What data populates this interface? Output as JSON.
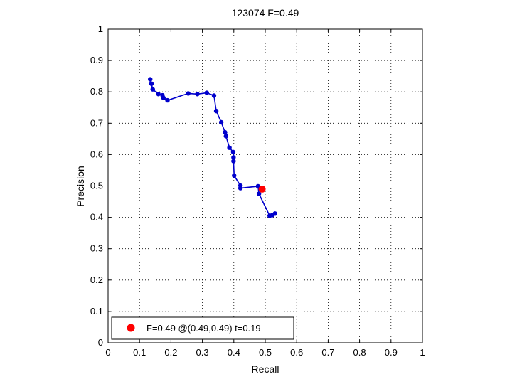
{
  "chart_data": {
    "type": "line",
    "title": "123074 F=0.49",
    "xlabel": "Recall",
    "ylabel": "Precision",
    "xlim": [
      0,
      1
    ],
    "ylim": [
      0,
      1
    ],
    "xticks": [
      "0",
      "0.1",
      "0.2",
      "0.3",
      "0.4",
      "0.5",
      "0.6",
      "0.7",
      "0.8",
      "0.9",
      "1"
    ],
    "yticks": [
      "0",
      "0.1",
      "0.2",
      "0.3",
      "0.4",
      "0.5",
      "0.6",
      "0.7",
      "0.8",
      "0.9",
      "1"
    ],
    "grid": true,
    "legend_position": "bottom-left",
    "series": [
      {
        "color": "#0000cc",
        "points": [
          [
            0.134,
            0.84
          ],
          [
            0.138,
            0.826
          ],
          [
            0.142,
            0.808
          ],
          [
            0.16,
            0.793
          ],
          [
            0.173,
            0.789
          ],
          [
            0.176,
            0.781
          ],
          [
            0.189,
            0.773
          ],
          [
            0.255,
            0.795
          ],
          [
            0.284,
            0.793
          ],
          [
            0.314,
            0.797
          ],
          [
            0.337,
            0.788
          ],
          [
            0.344,
            0.739
          ],
          [
            0.36,
            0.703
          ],
          [
            0.372,
            0.671
          ],
          [
            0.375,
            0.659
          ],
          [
            0.386,
            0.622
          ],
          [
            0.398,
            0.608
          ],
          [
            0.399,
            0.591
          ],
          [
            0.399,
            0.579
          ],
          [
            0.401,
            0.533
          ],
          [
            0.421,
            0.501
          ],
          [
            0.421,
            0.493
          ],
          [
            0.477,
            0.499
          ],
          [
            0.48,
            0.475
          ],
          [
            0.514,
            0.405
          ],
          [
            0.522,
            0.407
          ],
          [
            0.531,
            0.412
          ]
        ]
      }
    ],
    "highlight": {
      "recall": 0.49,
      "precision": 0.49,
      "color": "#ff0000",
      "label": "F=0.49 @(0.49,0.49) t=0.19"
    }
  }
}
